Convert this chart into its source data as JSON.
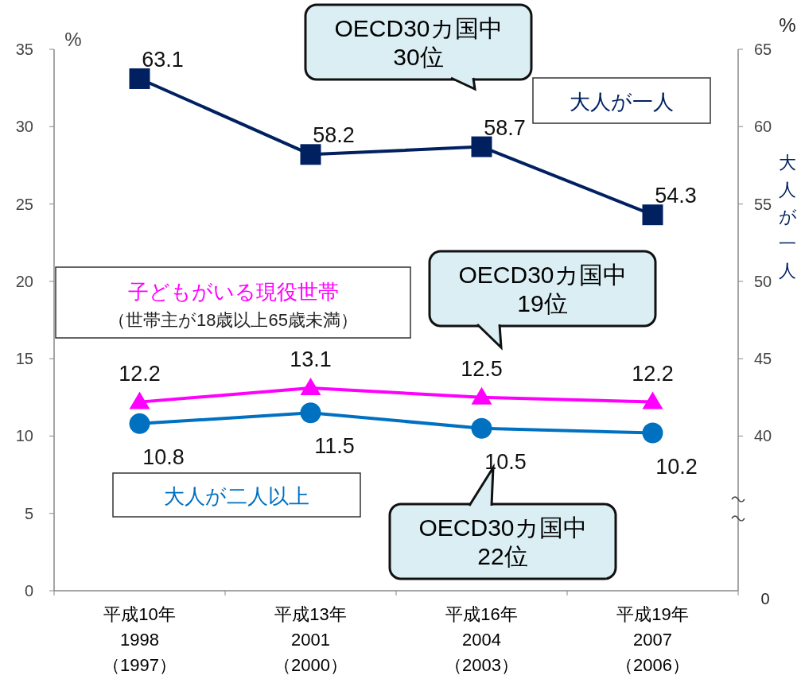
{
  "chart_data": {
    "type": "line",
    "categories": [
      "平成10年\n1998\n（1997）",
      "平成13年\n2001\n（2000）",
      "平成16年\n2004\n（2003）",
      "平成19年\n2007\n（2006）"
    ],
    "series": [
      {
        "name": "大人が一人",
        "color": "#002060",
        "axis": "y2",
        "marker": "square",
        "values": [
          63.1,
          58.2,
          58.7,
          54.3
        ]
      },
      {
        "name": "子どもがいる現役世帯",
        "color": "#ff00ff",
        "marker": "triangle",
        "values": [
          12.2,
          13.1,
          12.5,
          12.2
        ]
      },
      {
        "name": "大人が二人以上",
        "color": "#0070c0",
        "marker": "circle",
        "values": [
          10.8,
          11.5,
          10.5,
          10.2
        ]
      }
    ],
    "ylabel": "%",
    "y2label": "大人が一人",
    "ylim": [
      0,
      35
    ],
    "yticks": [
      0,
      5,
      10,
      15,
      20,
      25,
      30,
      35
    ],
    "y2lim": [
      30,
      65
    ],
    "y2ticks": [
      40,
      45,
      50,
      55,
      60,
      65
    ],
    "data_labels": true,
    "legend": false,
    "grid": false,
    "annotations": [
      "（世帯主が18歳以上65歳未満）",
      "%",
      "0",
      "OECD30カ国中\n30位",
      "OECD30カ国中\n19位",
      "OECD30カ国中\n22位"
    ]
  }
}
